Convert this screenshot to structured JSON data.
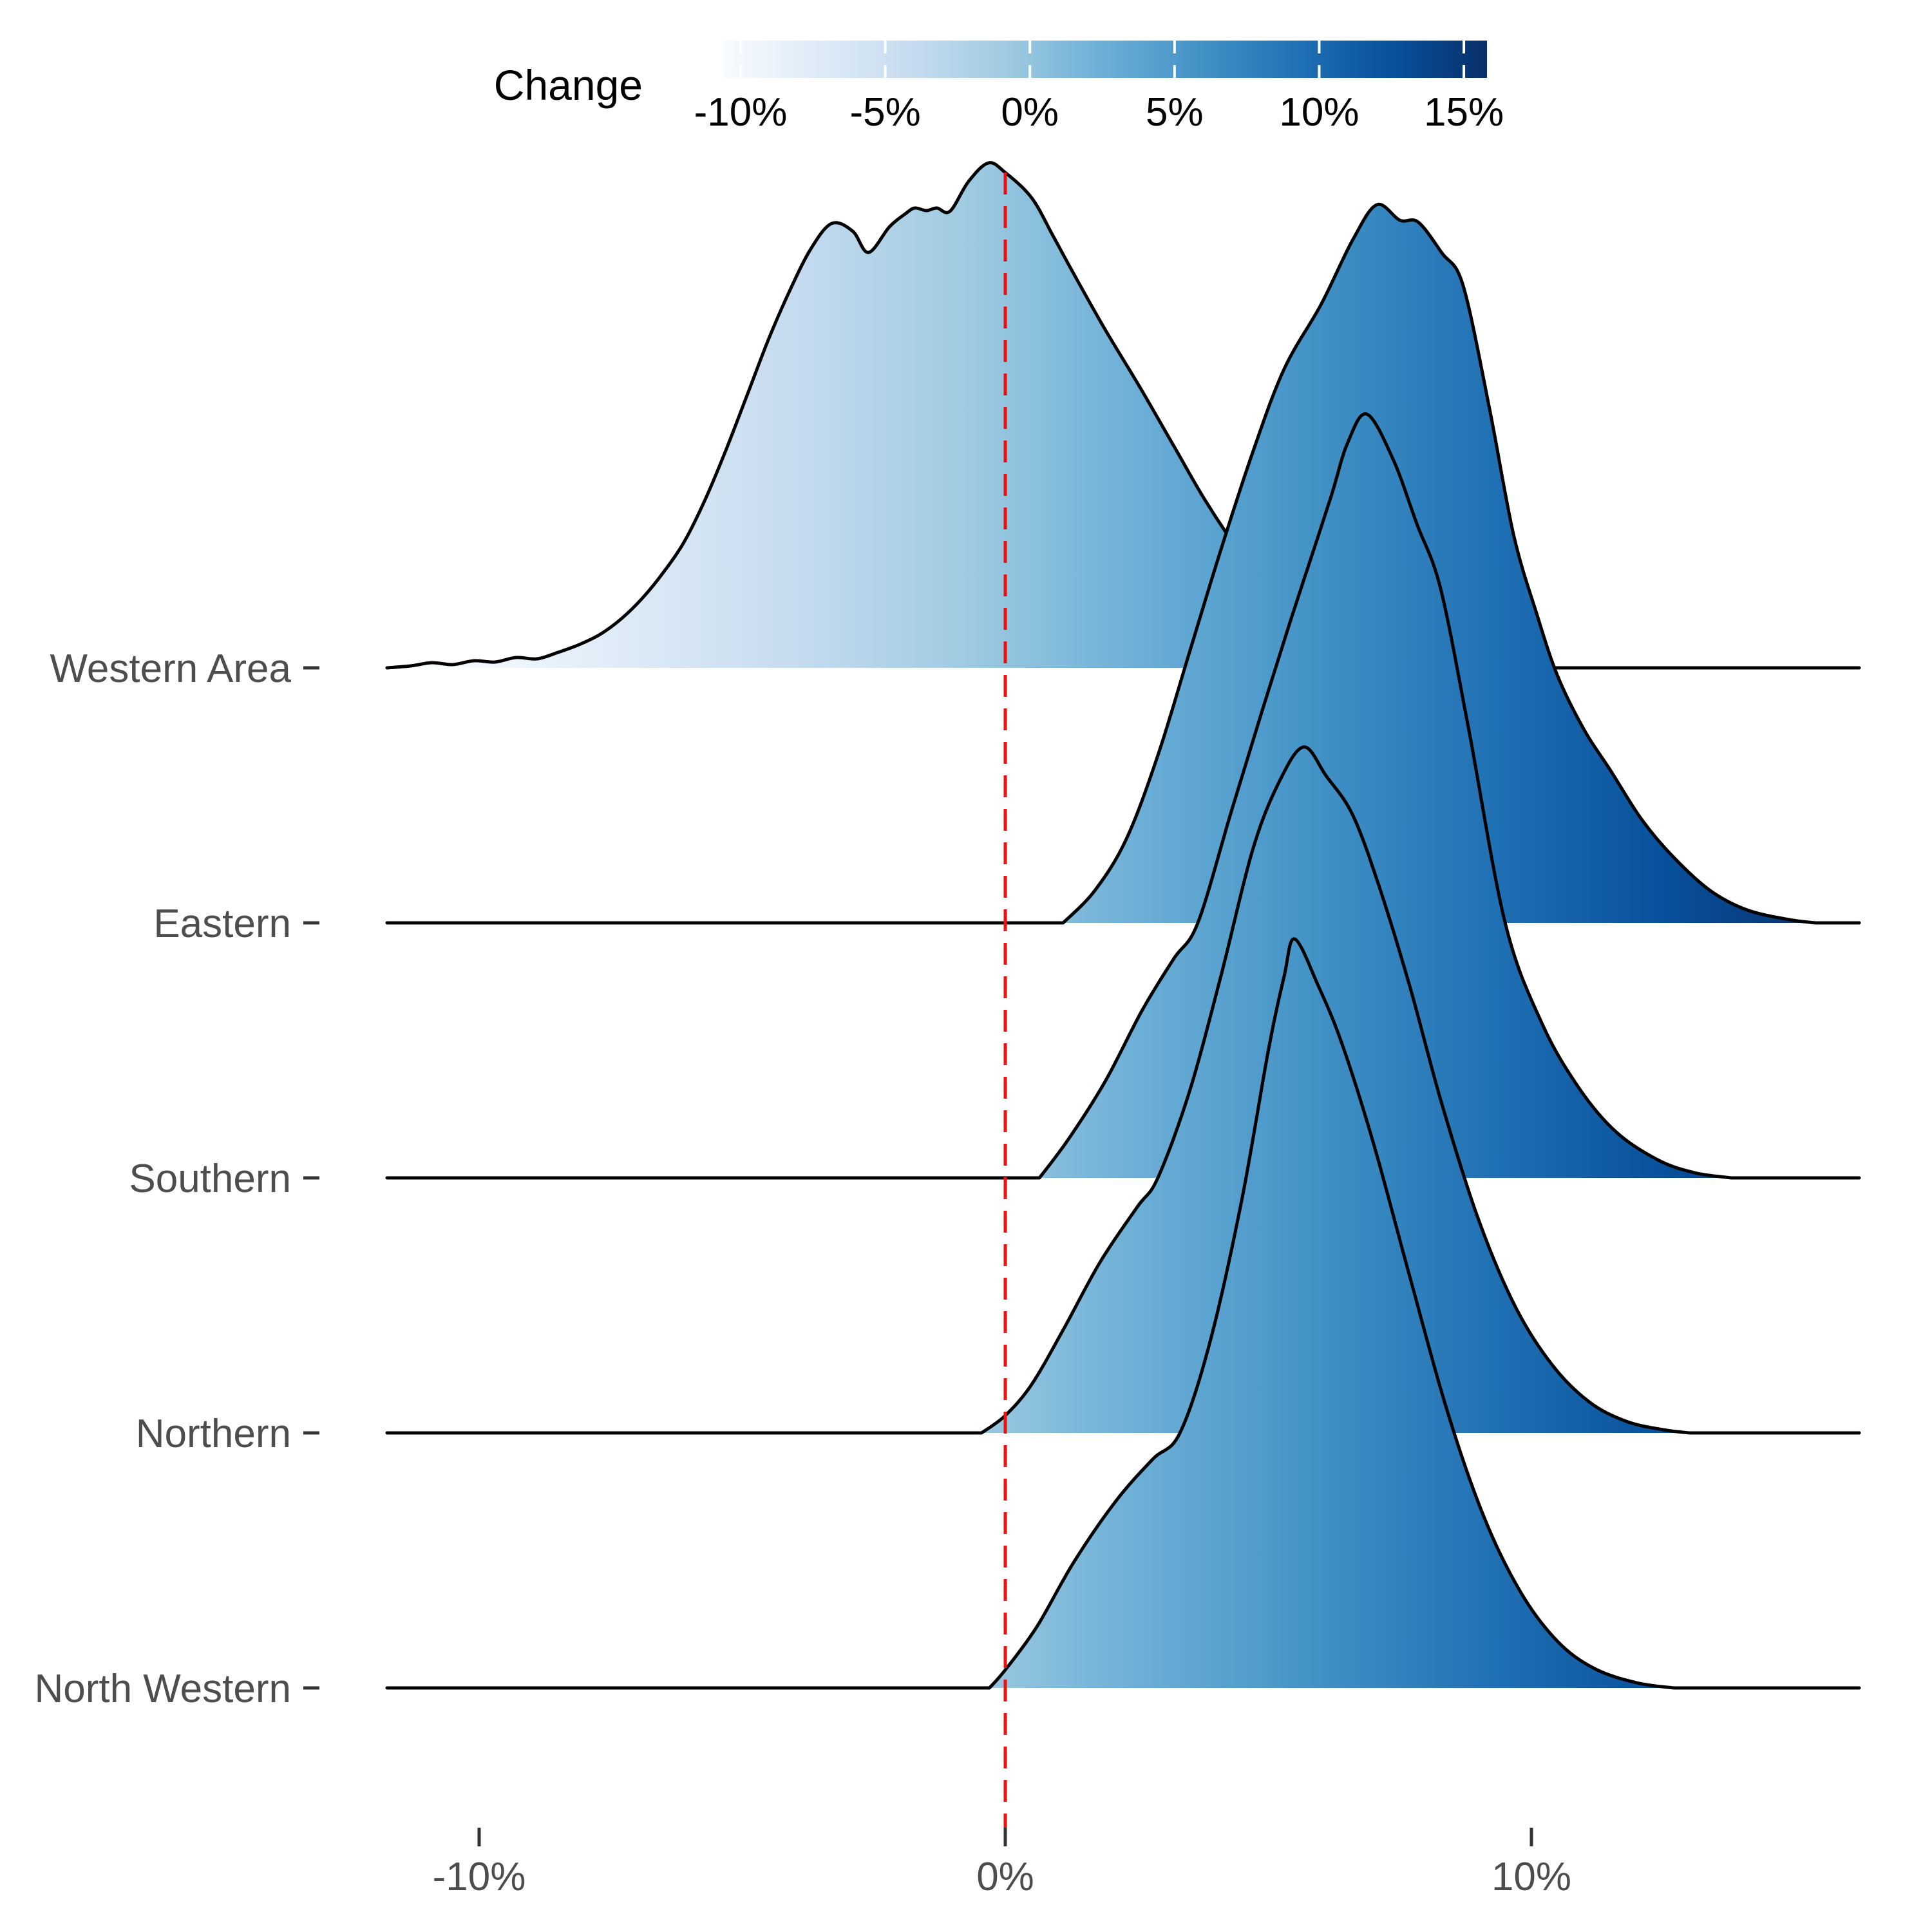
{
  "legend": {
    "title": "Change",
    "tick_labels": [
      "-10%",
      "-5%",
      "0%",
      "5%",
      "10%",
      "15%"
    ],
    "tick_values": [
      -10,
      -5,
      0,
      5,
      10,
      15
    ],
    "domain_pct": [
      -10.6,
      15.8
    ],
    "palette": [
      "#f7fbff",
      "#deebf7",
      "#c6dbef",
      "#9ecae1",
      "#6baed6",
      "#4292c6",
      "#2171b5",
      "#08519c",
      "#08306b"
    ]
  },
  "axes": {
    "x": {
      "tick_labels": [
        "-10%",
        "0%",
        "10%"
      ],
      "tick_values": [
        -10,
        0,
        10
      ],
      "unit": "percent change"
    },
    "y": {
      "categories": [
        "Western Area",
        "Eastern",
        "Southern",
        "Northern",
        "North Western"
      ]
    }
  },
  "reference_line": {
    "x_value": 0,
    "style": "dashed",
    "color": "#ed1111"
  },
  "colors": {
    "outline": "#000000",
    "axis_text": "#4d4d4d",
    "legend_text": "#000000",
    "tick_mark": "#333333",
    "background": "#ffffff"
  },
  "chart_data": {
    "type": "area",
    "subtype": "ridgeline-density",
    "x_unit": "percent change",
    "x_domain_pct": [
      -11.75,
      16.23
    ],
    "fill_rule": "horizontal gradient: color encodes x (Change %), Blues palette",
    "note": "points are [x_percent, ridge_height_px] read off the 3000px figure; each series sits on its own baseline row",
    "series": [
      {
        "name": "Western Area",
        "row": 0,
        "peak_x_pct": -0.3,
        "points": [
          [
            -11.75,
            0
          ],
          [
            -11.3,
            3
          ],
          [
            -10.9,
            8
          ],
          [
            -10.5,
            5
          ],
          [
            -10.1,
            11
          ],
          [
            -9.7,
            9
          ],
          [
            -9.3,
            16
          ],
          [
            -8.9,
            14
          ],
          [
            -8.5,
            24
          ],
          [
            -8.1,
            36
          ],
          [
            -7.7,
            52
          ],
          [
            -7.3,
            76
          ],
          [
            -6.9,
            108
          ],
          [
            -6.5,
            148
          ],
          [
            -6.1,
            196
          ],
          [
            -5.7,
            262
          ],
          [
            -5.3,
            340
          ],
          [
            -4.9,
            425
          ],
          [
            -4.5,
            510
          ],
          [
            -4.1,
            585
          ],
          [
            -3.7,
            650
          ],
          [
            -3.3,
            690
          ],
          [
            -2.9,
            678
          ],
          [
            -2.6,
            645
          ],
          [
            -2.2,
            685
          ],
          [
            -1.9,
            705
          ],
          [
            -1.72,
            714
          ],
          [
            -1.5,
            710
          ],
          [
            -1.3,
            714
          ],
          [
            -1.05,
            709
          ],
          [
            -0.7,
            755
          ],
          [
            -0.32,
            784
          ],
          [
            0.0,
            769
          ],
          [
            0.5,
            730
          ],
          [
            0.9,
            672
          ],
          [
            1.3,
            612
          ],
          [
            1.9,
            525
          ],
          [
            2.55,
            437
          ],
          [
            3.2,
            345
          ],
          [
            3.8,
            260
          ],
          [
            4.45,
            180
          ],
          [
            5.05,
            116
          ],
          [
            5.7,
            62
          ],
          [
            6.3,
            26
          ],
          [
            6.9,
            0
          ]
        ]
      },
      {
        "name": "Eastern",
        "row": 1,
        "peak_x_pct": 7.1,
        "points": [
          [
            1.1,
            0
          ],
          [
            1.7,
            50
          ],
          [
            2.3,
            130
          ],
          [
            2.9,
            260
          ],
          [
            3.5,
            420
          ],
          [
            4.1,
            580
          ],
          [
            4.7,
            730
          ],
          [
            5.3,
            860
          ],
          [
            6.0,
            960
          ],
          [
            6.6,
            1060
          ],
          [
            7.06,
            1115
          ],
          [
            7.5,
            1091
          ],
          [
            7.85,
            1088
          ],
          [
            8.3,
            1040
          ],
          [
            8.7,
            990
          ],
          [
            9.2,
            800
          ],
          [
            9.66,
            603
          ],
          [
            10.1,
            480
          ],
          [
            10.5,
            383
          ],
          [
            11.0,
            300
          ],
          [
            11.5,
            237
          ],
          [
            12.1,
            160
          ],
          [
            12.7,
            102
          ],
          [
            13.4,
            50
          ],
          [
            14.1,
            20
          ],
          [
            14.9,
            5
          ],
          [
            15.4,
            0
          ]
        ]
      },
      {
        "name": "Southern",
        "row": 2,
        "peak_x_pct": 6.9,
        "points": [
          [
            0.65,
            0
          ],
          [
            1.2,
            60
          ],
          [
            1.9,
            150
          ],
          [
            2.6,
            260
          ],
          [
            3.2,
            340
          ],
          [
            3.66,
            396
          ],
          [
            4.3,
            570
          ],
          [
            4.9,
            730
          ],
          [
            5.4,
            860
          ],
          [
            5.8,
            960
          ],
          [
            6.2,
            1060
          ],
          [
            6.5,
            1140
          ],
          [
            6.87,
            1186
          ],
          [
            7.37,
            1116
          ],
          [
            7.82,
            1016
          ],
          [
            8.27,
            916
          ],
          [
            8.8,
            700
          ],
          [
            9.5,
            396
          ],
          [
            10.2,
            240
          ],
          [
            10.9,
            140
          ],
          [
            11.6,
            72
          ],
          [
            12.4,
            28
          ],
          [
            13.1,
            8
          ],
          [
            13.8,
            0
          ]
        ]
      },
      {
        "name": "Northern",
        "row": 3,
        "peak_x_pct": 5.7,
        "points": [
          [
            -0.45,
            0
          ],
          [
            0.0,
            27
          ],
          [
            0.5,
            75
          ],
          [
            1.1,
            160
          ],
          [
            1.8,
            265
          ],
          [
            2.5,
            350
          ],
          [
            2.9,
            396
          ],
          [
            3.5,
            530
          ],
          [
            4.1,
            710
          ],
          [
            4.7,
            905
          ],
          [
            5.2,
            1010
          ],
          [
            5.67,
            1065
          ],
          [
            6.1,
            1020
          ],
          [
            6.6,
            960
          ],
          [
            7.1,
            850
          ],
          [
            7.7,
            690
          ],
          [
            8.3,
            510
          ],
          [
            9.0,
            330
          ],
          [
            9.7,
            195
          ],
          [
            10.4,
            105
          ],
          [
            11.1,
            48
          ],
          [
            11.8,
            18
          ],
          [
            12.5,
            5
          ],
          [
            13.0,
            0
          ]
        ]
      },
      {
        "name": "North Western",
        "row": 4,
        "peak_x_pct": 5.5,
        "points": [
          [
            -0.3,
            0
          ],
          [
            0.0,
            28
          ],
          [
            0.6,
            95
          ],
          [
            1.3,
            195
          ],
          [
            2.1,
            290
          ],
          [
            2.8,
            355
          ],
          [
            3.32,
            396
          ],
          [
            3.9,
            540
          ],
          [
            4.5,
            760
          ],
          [
            5.0,
            990
          ],
          [
            5.3,
            1105
          ],
          [
            5.5,
            1163
          ],
          [
            5.95,
            1090
          ],
          [
            6.4,
            1000
          ],
          [
            7.0,
            845
          ],
          [
            7.7,
            635
          ],
          [
            8.4,
            430
          ],
          [
            9.1,
            265
          ],
          [
            9.8,
            148
          ],
          [
            10.5,
            72
          ],
          [
            11.2,
            30
          ],
          [
            12.0,
            8
          ],
          [
            12.7,
            0
          ]
        ]
      }
    ]
  }
}
